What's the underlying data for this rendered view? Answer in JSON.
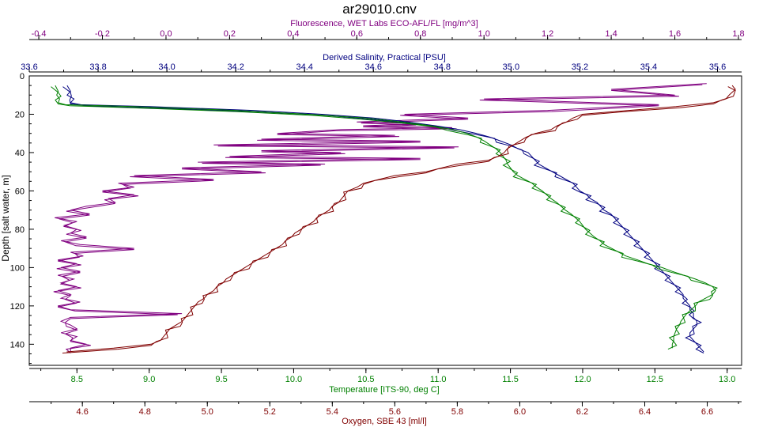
{
  "chart_data": {
    "type": "line",
    "title": "ar29010.cnv",
    "grid": false,
    "legend": "none",
    "axes": {
      "depth": {
        "label": "Depth [salt water, m]",
        "range": [
          0,
          151
        ],
        "inverted": true,
        "ticks": [
          "0",
          "20",
          "40",
          "60",
          "80",
          "100",
          "120",
          "140"
        ],
        "color": "#000000"
      },
      "fluorescence": {
        "label": "Fluorescence, WET Labs ECO-AFL/FL [mg/m^3]",
        "range": [
          -0.43,
          1.81
        ],
        "ticks": [
          "-0.4",
          "-0.2",
          "0.0",
          "0.2",
          "0.4",
          "0.6",
          "0.8",
          "1.0",
          "1.2",
          "1.4",
          "1.6",
          "1.8"
        ],
        "color": "#800080"
      },
      "salinity": {
        "label": "Derived Salinity, Practical [PSU]",
        "range": [
          33.6,
          35.67
        ],
        "ticks": [
          "33.6",
          "33.8",
          "34.0",
          "34.2",
          "34.4",
          "34.6",
          "34.8",
          "35.0",
          "35.2",
          "35.4",
          "35.6"
        ],
        "color": "#000080"
      },
      "temperature": {
        "label": "Temperature [ITS-90, deg C]",
        "range": [
          8.17,
          13.1
        ],
        "ticks": [
          "8.5",
          "9.0",
          "9.5",
          "10.0",
          "10.5",
          "11.0",
          "11.5",
          "12.0",
          "12.5",
          "13.0"
        ],
        "color": "#008000"
      },
      "oxygen": {
        "label": "Oxygen, SBE 43 [ml/l]",
        "range": [
          4.43,
          6.71
        ],
        "ticks": [
          "4.6",
          "4.8",
          "5.0",
          "5.2",
          "5.4",
          "5.6",
          "5.8",
          "6.0",
          "6.2",
          "6.4",
          "6.6"
        ],
        "color": "#800000"
      }
    },
    "series": [
      {
        "key": "fluorescence",
        "color": "#800080",
        "depth": [
          4,
          7,
          10,
          12,
          15,
          18,
          20,
          22,
          24,
          25,
          26,
          27,
          28,
          30,
          31,
          33,
          34,
          36,
          37,
          39,
          40,
          42,
          43,
          45,
          46,
          48,
          50,
          52,
          54,
          56,
          58,
          60,
          62,
          64,
          66,
          68,
          70,
          72,
          74,
          76,
          78,
          80,
          82,
          84,
          86,
          88,
          90,
          92,
          94,
          96,
          98,
          100,
          102,
          104,
          106,
          108,
          110,
          112,
          114,
          116,
          118,
          120,
          122,
          124,
          126,
          128,
          130,
          132,
          134,
          136,
          138,
          140,
          142,
          144
        ],
        "values": [
          1.7,
          1.4,
          1.6,
          1.0,
          1.55,
          1.2,
          0.75,
          0.95,
          0.6,
          0.8,
          0.62,
          0.9,
          0.55,
          0.35,
          0.72,
          0.3,
          0.8,
          0.15,
          0.92,
          0.3,
          0.55,
          0.2,
          0.8,
          0.1,
          0.5,
          0.05,
          0.3,
          -0.1,
          0.15,
          -0.15,
          -0.1,
          -0.2,
          -0.1,
          -0.18,
          -0.16,
          -0.25,
          -0.3,
          -0.24,
          -0.35,
          -0.28,
          -0.32,
          -0.28,
          -0.3,
          -0.25,
          -0.33,
          -0.27,
          -0.1,
          -0.3,
          -0.26,
          -0.34,
          -0.28,
          -0.33,
          -0.27,
          -0.34,
          -0.29,
          -0.33,
          -0.28,
          -0.34,
          -0.3,
          -0.33,
          -0.27,
          -0.34,
          -0.3,
          0.05,
          -0.3,
          -0.33,
          -0.3,
          -0.28,
          -0.33,
          -0.28,
          -0.3,
          -0.25,
          -0.3,
          -0.3
        ]
      },
      {
        "key": "salinity",
        "color": "#000080",
        "depth": [
          5,
          8,
          10,
          12,
          14,
          15,
          16,
          18,
          20,
          22,
          24,
          26,
          28,
          30,
          32,
          34,
          36,
          38,
          40,
          42,
          44,
          46,
          48,
          50,
          52,
          54,
          56,
          58,
          60,
          62,
          64,
          66,
          68,
          70,
          72,
          74,
          76,
          78,
          80,
          82,
          84,
          86,
          88,
          90,
          92,
          94,
          96,
          98,
          100,
          102,
          104,
          106,
          108,
          110,
          112,
          114,
          116,
          118,
          120,
          122,
          124,
          126,
          128,
          130,
          132,
          134,
          136,
          138,
          140,
          142,
          144
        ],
        "values": [
          33.71,
          33.72,
          33.71,
          33.73,
          33.72,
          33.75,
          33.95,
          34.25,
          34.45,
          34.6,
          34.7,
          34.78,
          34.85,
          34.9,
          34.94,
          34.97,
          35.0,
          35.02,
          35.05,
          35.06,
          35.07,
          35.08,
          35.1,
          35.12,
          35.14,
          35.16,
          35.18,
          35.19,
          35.2,
          35.22,
          35.23,
          35.25,
          35.26,
          35.27,
          35.29,
          35.3,
          35.31,
          35.32,
          35.33,
          35.34,
          35.35,
          35.36,
          35.37,
          35.38,
          35.39,
          35.4,
          35.41,
          35.42,
          35.43,
          35.44,
          35.45,
          35.46,
          35.47,
          35.48,
          35.49,
          35.5,
          35.5,
          35.51,
          35.52,
          35.52,
          35.53,
          35.53,
          35.54,
          35.54,
          35.53,
          35.52,
          35.52,
          35.53,
          35.54,
          35.55,
          35.56
        ]
      },
      {
        "key": "temperature",
        "color": "#008000",
        "depth": [
          5,
          8,
          10,
          12,
          14,
          15,
          16,
          18,
          20,
          22,
          24,
          26,
          28,
          30,
          32,
          34,
          36,
          38,
          40,
          42,
          44,
          46,
          48,
          50,
          52,
          54,
          56,
          58,
          60,
          62,
          64,
          66,
          68,
          70,
          72,
          74,
          76,
          78,
          80,
          82,
          84,
          86,
          88,
          90,
          92,
          94,
          96,
          98,
          100,
          102,
          104,
          106,
          108,
          110,
          112,
          114,
          116,
          118,
          120,
          122,
          124,
          126,
          128,
          130,
          132,
          134,
          136,
          138,
          140,
          142
        ],
        "values": [
          8.35,
          8.37,
          8.36,
          8.38,
          8.37,
          8.42,
          8.9,
          9.6,
          10.1,
          10.5,
          10.75,
          10.95,
          11.1,
          11.2,
          11.27,
          11.32,
          11.36,
          11.4,
          11.43,
          11.45,
          11.47,
          11.48,
          11.5,
          11.52,
          11.55,
          11.6,
          11.65,
          11.68,
          11.72,
          11.75,
          11.78,
          11.82,
          11.85,
          11.88,
          11.92,
          11.95,
          11.98,
          12.0,
          12.02,
          12.05,
          12.08,
          12.12,
          12.15,
          12.2,
          12.25,
          12.3,
          12.38,
          12.45,
          12.55,
          12.62,
          12.7,
          12.78,
          12.85,
          12.9,
          12.92,
          12.9,
          12.85,
          12.8,
          12.78,
          12.75,
          12.72,
          12.7,
          12.68,
          12.67,
          12.65,
          12.64,
          12.63,
          12.63,
          12.62,
          12.62
        ]
      },
      {
        "key": "oxygen",
        "color": "#800000",
        "depth": [
          5,
          7,
          10,
          12,
          14,
          16,
          18,
          20,
          22,
          24,
          26,
          28,
          30,
          32,
          34,
          36,
          38,
          40,
          42,
          44,
          46,
          48,
          50,
          52,
          54,
          56,
          58,
          60,
          62,
          64,
          66,
          68,
          70,
          72,
          74,
          76,
          78,
          80,
          82,
          84,
          86,
          88,
          90,
          92,
          94,
          96,
          98,
          100,
          102,
          104,
          106,
          108,
          110,
          112,
          114,
          116,
          118,
          120,
          122,
          124,
          126,
          128,
          130,
          132,
          134,
          136,
          138,
          140,
          142,
          144
        ],
        "values": [
          6.68,
          6.69,
          6.67,
          6.66,
          6.62,
          6.5,
          6.35,
          6.2,
          6.17,
          6.15,
          6.12,
          6.1,
          6.05,
          6.02,
          6.0,
          5.98,
          5.96,
          5.95,
          5.93,
          5.9,
          5.8,
          5.75,
          5.7,
          5.6,
          5.55,
          5.5,
          5.48,
          5.45,
          5.44,
          5.43,
          5.42,
          5.4,
          5.39,
          5.37,
          5.35,
          5.34,
          5.32,
          5.3,
          5.28,
          5.27,
          5.25,
          5.24,
          5.22,
          5.2,
          5.18,
          5.16,
          5.14,
          5.12,
          5.1,
          5.08,
          5.06,
          5.05,
          5.03,
          5.02,
          5.0,
          4.99,
          4.97,
          4.96,
          4.95,
          4.94,
          4.93,
          4.92,
          4.9,
          4.88,
          4.87,
          4.86,
          4.85,
          4.82,
          4.7,
          4.55
        ]
      }
    ]
  }
}
